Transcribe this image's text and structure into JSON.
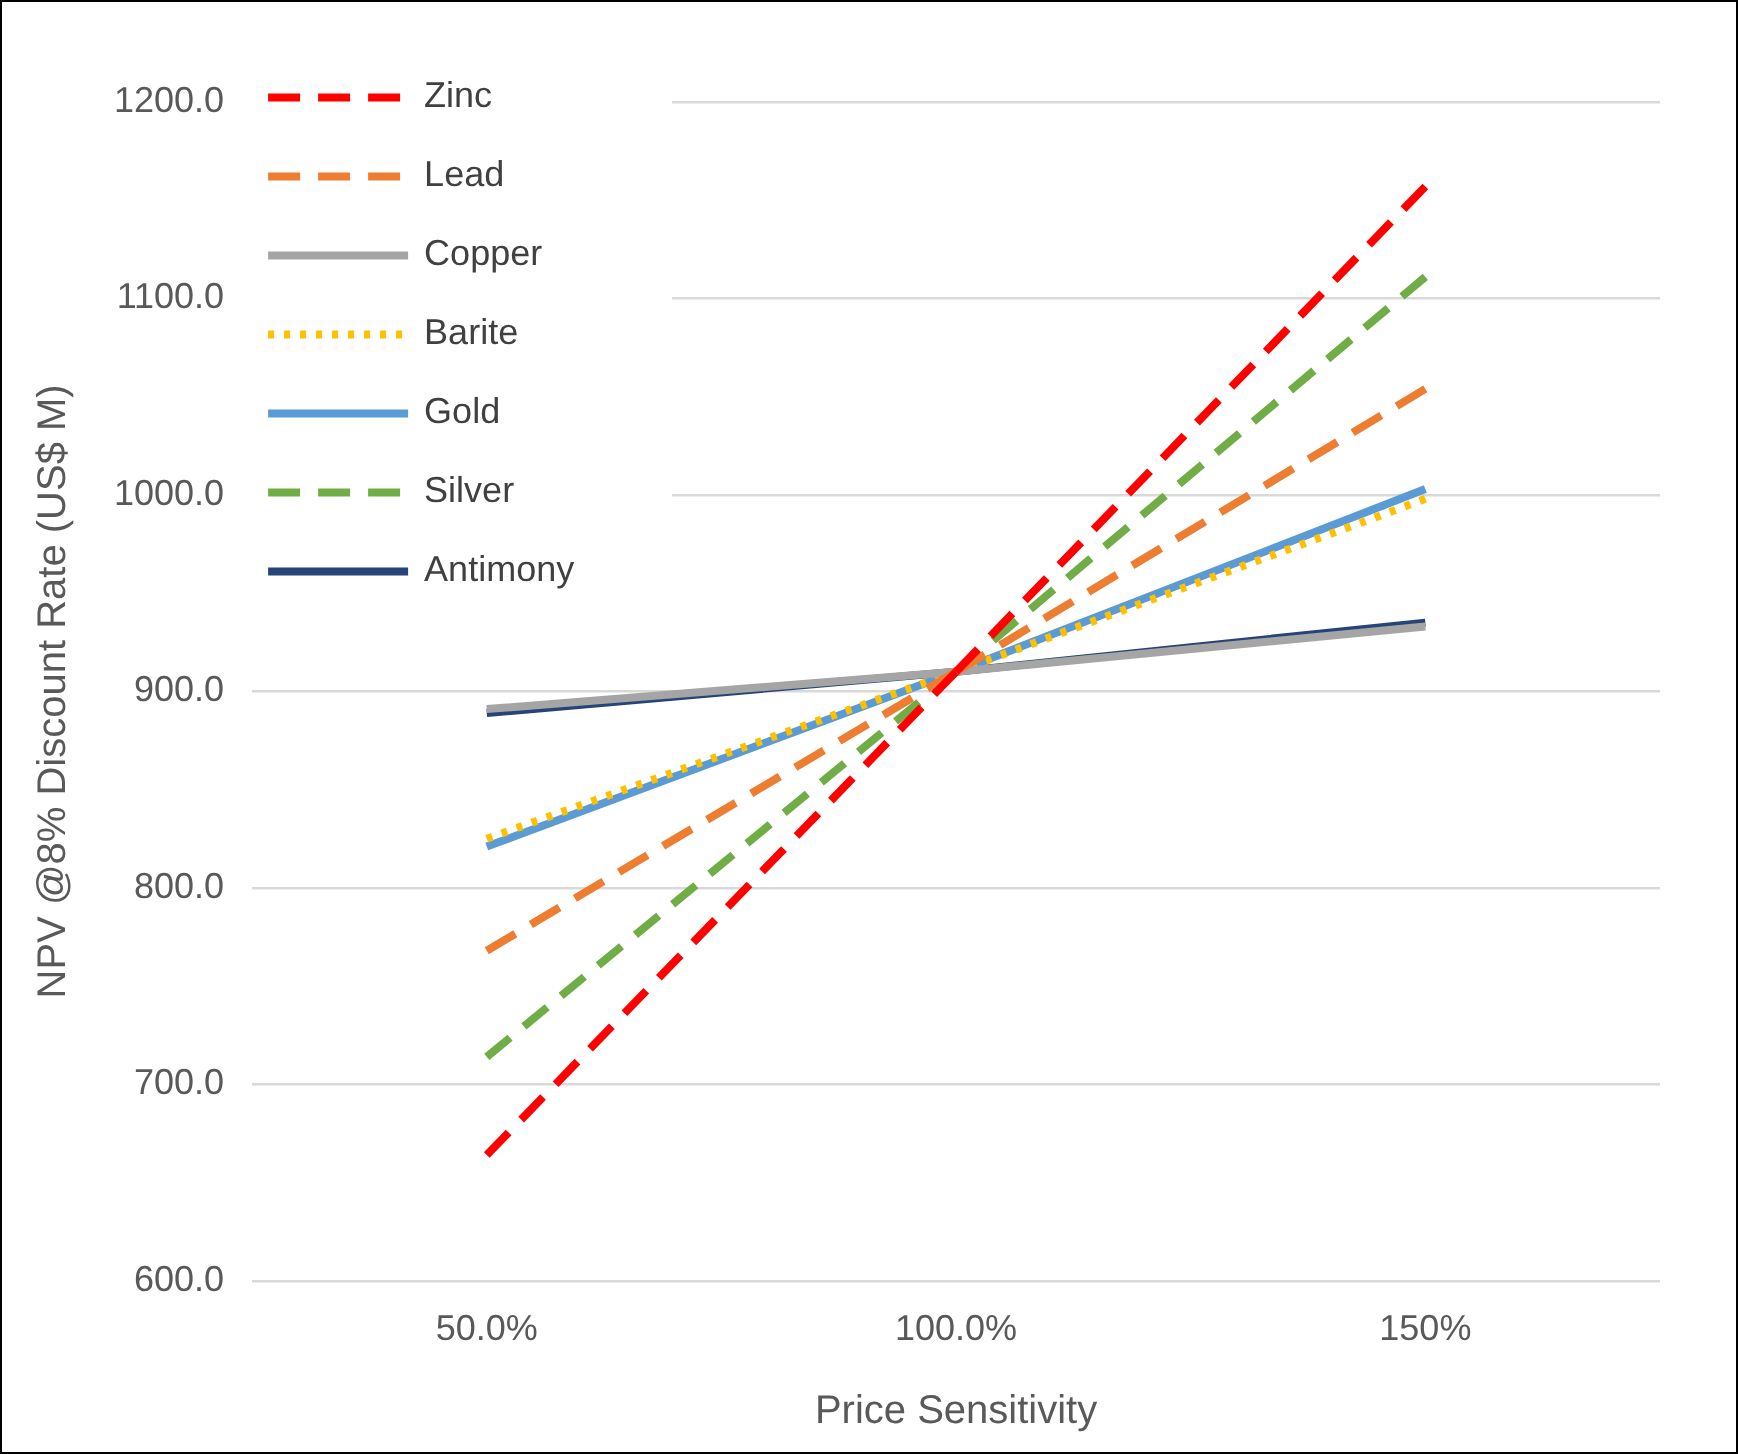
{
  "chart_data": {
    "type": "line",
    "xlabel": "Price Sensitivity",
    "ylabel": "NPV @8% Discount Rate (US$ M)",
    "categories": [
      "50.0%",
      "100.0%",
      "150%"
    ],
    "series": [
      {
        "name": "Zinc",
        "color": "#ff0000",
        "line_style": "dashed",
        "values": [
          664,
          910,
          1157
        ]
      },
      {
        "name": "Lead",
        "color": "#ed7d31",
        "line_style": "dashed",
        "values": [
          768,
          910,
          1054
        ]
      },
      {
        "name": "Copper",
        "color": "#a5a5a5",
        "line_style": "solid",
        "values": [
          891,
          910,
          933
        ]
      },
      {
        "name": "Barite",
        "color": "#ffc000",
        "line_style": "dotted",
        "values": [
          825,
          910,
          998
        ]
      },
      {
        "name": "Gold",
        "color": "#5b9bd5",
        "line_style": "solid",
        "values": [
          821,
          910,
          1003
        ]
      },
      {
        "name": "Silver",
        "color": "#70ad47",
        "line_style": "dashed",
        "values": [
          714,
          910,
          1111
        ]
      },
      {
        "name": "Antimony",
        "color": "#264478",
        "line_style": "solid",
        "values": [
          889,
          910,
          935
        ]
      }
    ],
    "ylim": [
      600,
      1200
    ],
    "yticks": [
      {
        "value": 600,
        "label": "600.0"
      },
      {
        "value": 700,
        "label": "700.0"
      },
      {
        "value": 800,
        "label": "800.0"
      },
      {
        "value": 900,
        "label": "900.0"
      },
      {
        "value": 1000,
        "label": "1000.0"
      },
      {
        "value": 1100,
        "label": "1100.0"
      },
      {
        "value": 1200,
        "label": "1200.0"
      }
    ],
    "grid": "y",
    "legend": "top left",
    "marker": "none"
  }
}
